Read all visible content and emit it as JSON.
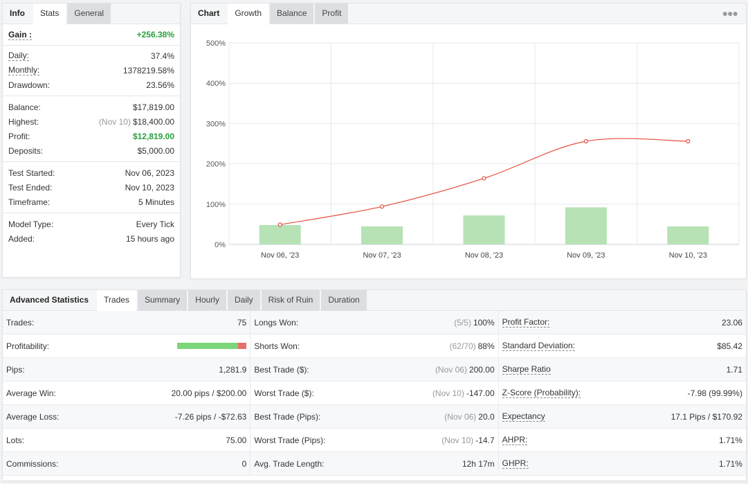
{
  "info_panel": {
    "tabs": [
      "Info",
      "Stats",
      "General"
    ],
    "gain": {
      "label": "Gain :",
      "value": "+256.38%"
    },
    "group1": [
      {
        "label": "Daily:",
        "value": "37.4%",
        "underline": true
      },
      {
        "label": "Monthly:",
        "value": "1378219.58%",
        "underline": true
      },
      {
        "label": "Drawdown:",
        "value": "23.56%",
        "underline": false
      }
    ],
    "balance": {
      "label": "Balance:",
      "value": "$17,819.00"
    },
    "highest": {
      "label": "Highest:",
      "date": "(Nov 10)",
      "value": "$18,400.00"
    },
    "profit": {
      "label": "Profit:",
      "value": "$12,819.00"
    },
    "deposits": {
      "label": "Deposits:",
      "value": "$5,000.00"
    },
    "group3": [
      {
        "label": "Test Started:",
        "value": "Nov 06, 2023"
      },
      {
        "label": "Test Ended:",
        "value": "Nov 10, 2023"
      },
      {
        "label": "Timeframe:",
        "value": "5 Minutes"
      }
    ],
    "group4": [
      {
        "label": "Model Type:",
        "value": "Every Tick"
      },
      {
        "label": "Added:",
        "value": "15 hours ago"
      }
    ]
  },
  "chart_panel": {
    "tabs": [
      "Chart",
      "Growth",
      "Balance",
      "Profit"
    ],
    "menu_icon": "more-dots-icon"
  },
  "chart_data": {
    "type": "line",
    "categories": [
      "Nov 06, '23",
      "Nov 07, '23",
      "Nov 08, '23",
      "Nov 09, '23",
      "Nov 10, '23"
    ],
    "y_ticks": [
      "0%",
      "100%",
      "200%",
      "300%",
      "400%",
      "500%"
    ],
    "ylim": [
      0,
      500
    ],
    "series": [
      {
        "type": "bar",
        "values": [
          48,
          45,
          72,
          92,
          45
        ],
        "color": "#b6e2b6"
      },
      {
        "type": "line",
        "values": [
          49,
          94,
          164,
          256,
          256
        ],
        "color": "#e74c3c"
      }
    ],
    "grid": true
  },
  "advanced": {
    "title": "Advanced Statistics",
    "tabs": [
      "Trades",
      "Summary",
      "Hourly",
      "Daily",
      "Risk of Ruin",
      "Duration"
    ],
    "col1": [
      {
        "label": "Trades:",
        "value": "75"
      },
      {
        "label": "Profitability:",
        "bar": true,
        "win_fraction": 0.88
      },
      {
        "label": "Pips:",
        "value": "1,281.9"
      },
      {
        "label": "Average Win:",
        "value": "20.00 pips / $200.00"
      },
      {
        "label": "Average Loss:",
        "value": "-7.26 pips / -$72.63"
      },
      {
        "label": "Lots:",
        "value": "75.00"
      },
      {
        "label": "Commissions:",
        "value": "0"
      }
    ],
    "col2": [
      {
        "label": "Longs Won:",
        "muted": "(5/5)",
        "value": "100%"
      },
      {
        "label": "Shorts Won:",
        "muted": "(62/70)",
        "value": "88%"
      },
      {
        "label": "Best Trade ($):",
        "muted": "(Nov 06)",
        "value": "200.00"
      },
      {
        "label": "Worst Trade ($):",
        "muted": "(Nov 10)",
        "value": "-147.00"
      },
      {
        "label": "Best Trade (Pips):",
        "muted": "(Nov 06)",
        "value": "20.0"
      },
      {
        "label": "Worst Trade (Pips):",
        "muted": "(Nov 10)",
        "value": "-14.7"
      },
      {
        "label": "Avg. Trade Length:",
        "value": "12h 17m"
      }
    ],
    "col3": [
      {
        "label": "Profit Factor:",
        "value": "23.06"
      },
      {
        "label": "Standard Deviation:",
        "value": "$85.42"
      },
      {
        "label": "Sharpe Ratio",
        "value": "1.71"
      },
      {
        "label": "Z-Score (Probability):",
        "value": "-7.98 (99.99%)"
      },
      {
        "label": "Expectancy",
        "value": "17.1 Pips / $170.92"
      },
      {
        "label": "AHPR:",
        "value": "1.71%"
      },
      {
        "label": "GHPR:",
        "value": "1.71%"
      }
    ]
  }
}
